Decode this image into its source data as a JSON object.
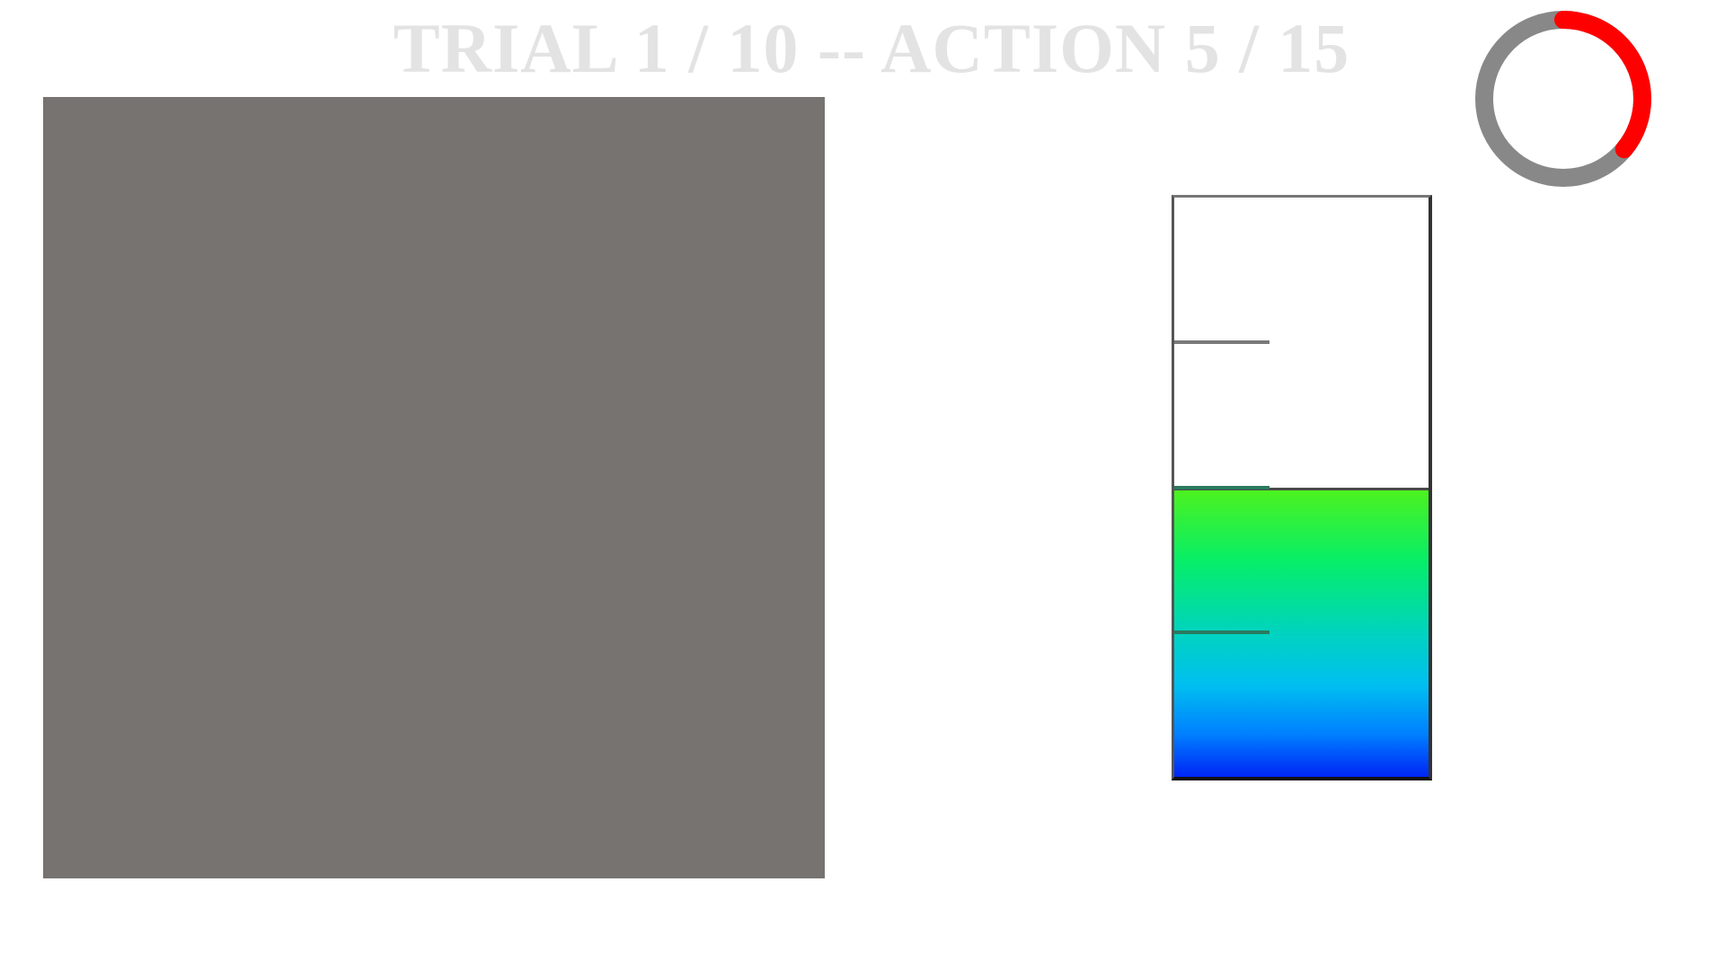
{
  "header": {
    "title": "TRIAL 1 / 10 -- ACTION 5 / 15"
  },
  "timer": {
    "track_color": "#888888",
    "progress_color": "#ff0000",
    "progress_fraction": 0.36
  },
  "stimulus": {
    "color": "#777371"
  },
  "gauge": {
    "fill_fraction": 0.5,
    "ticks": [
      0.25,
      0.5,
      0.75
    ],
    "gradient_top": "#4cf21f",
    "gradient_bottom": "#0025f5"
  }
}
